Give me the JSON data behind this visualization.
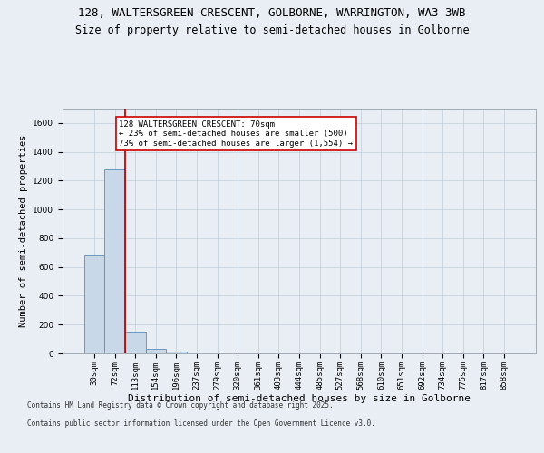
{
  "title_line1": "128, WALTERSGREEN CRESCENT, GOLBORNE, WARRINGTON, WA3 3WB",
  "title_line2": "Size of property relative to semi-detached houses in Golborne",
  "xlabel": "Distribution of semi-detached houses by size in Golborne",
  "ylabel": "Number of semi-detached properties",
  "categories": [
    "30sqm",
    "72sqm",
    "113sqm",
    "154sqm",
    "196sqm",
    "237sqm",
    "279sqm",
    "320sqm",
    "361sqm",
    "403sqm",
    "444sqm",
    "485sqm",
    "527sqm",
    "568sqm",
    "610sqm",
    "651sqm",
    "692sqm",
    "734sqm",
    "775sqm",
    "817sqm",
    "858sqm"
  ],
  "values": [
    680,
    1280,
    150,
    30,
    10,
    0,
    0,
    0,
    0,
    0,
    0,
    0,
    0,
    0,
    0,
    0,
    0,
    0,
    0,
    0,
    0
  ],
  "bar_color": "#c8d8e8",
  "bar_edgecolor": "#5b8db8",
  "ylim": [
    0,
    1700
  ],
  "yticks": [
    0,
    200,
    400,
    600,
    800,
    1000,
    1200,
    1400,
    1600
  ],
  "property_bar_index": 1,
  "vline_color": "#cc0000",
  "annotation_text": "128 WALTERSGREEN CRESCENT: 70sqm\n← 23% of semi-detached houses are smaller (500)\n73% of semi-detached houses are larger (1,554) →",
  "footer_line1": "Contains HM Land Registry data © Crown copyright and database right 2025.",
  "footer_line2": "Contains public sector information licensed under the Open Government Licence v3.0.",
  "background_color": "#e8eef4",
  "plot_background_color": "#e8eef4",
  "grid_color": "#c0ccd8",
  "title_fontsize": 9,
  "subtitle_fontsize": 8.5,
  "tick_fontsize": 6.5,
  "xlabel_fontsize": 8,
  "ylabel_fontsize": 7.5,
  "annotation_fontsize": 6.5,
  "footer_fontsize": 5.5
}
